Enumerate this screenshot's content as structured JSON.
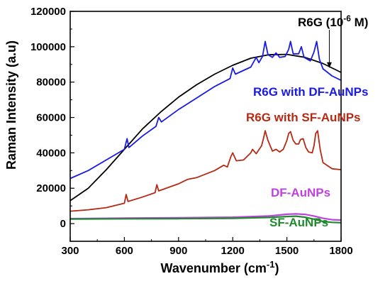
{
  "chart_data": {
    "type": "line",
    "xlabel": "Wavenumber (cm",
    "xlabel_superscript": "-1",
    "xlabel_suffix": ")",
    "ylabel": "Raman Intensity (a.u)",
    "xlim": [
      300,
      1800
    ],
    "ylim": [
      -10000,
      120000
    ],
    "x_ticks": [
      300,
      600,
      900,
      1200,
      1500,
      1800
    ],
    "y_ticks": [
      0,
      20000,
      40000,
      60000,
      80000,
      100000,
      120000
    ],
    "grid": false,
    "annotations": [
      {
        "text_main": "R6G (10",
        "text_sup": "-6",
        "text_end": " M)",
        "arrow_to": [
          1735,
          88000
        ]
      }
    ],
    "series": [
      {
        "name": "R6G (10-6 M)",
        "color": "#000000",
        "points": [
          [
            300,
            13000
          ],
          [
            400,
            20000
          ],
          [
            500,
            30500
          ],
          [
            600,
            42000
          ],
          [
            700,
            53500
          ],
          [
            800,
            63000
          ],
          [
            900,
            71500
          ],
          [
            1000,
            78500
          ],
          [
            1100,
            84500
          ],
          [
            1200,
            89500
          ],
          [
            1300,
            93500
          ],
          [
            1400,
            95500
          ],
          [
            1500,
            95700
          ],
          [
            1600,
            94000
          ],
          [
            1700,
            90500
          ],
          [
            1800,
            85500
          ]
        ]
      },
      {
        "name": "R6G with DF-AuNPs",
        "color": "#1a1ae6",
        "points": [
          [
            300,
            25500
          ],
          [
            400,
            30000
          ],
          [
            500,
            36000
          ],
          [
            600,
            42000
          ],
          [
            615,
            48000
          ],
          [
            625,
            43000
          ],
          [
            700,
            49500
          ],
          [
            775,
            55000
          ],
          [
            790,
            60000
          ],
          [
            805,
            57500
          ],
          [
            900,
            64500
          ],
          [
            1000,
            71000
          ],
          [
            1100,
            77500
          ],
          [
            1185,
            82000
          ],
          [
            1200,
            88000
          ],
          [
            1215,
            84500
          ],
          [
            1300,
            88500
          ],
          [
            1330,
            94000
          ],
          [
            1345,
            91000
          ],
          [
            1365,
            94500
          ],
          [
            1380,
            103000
          ],
          [
            1395,
            95500
          ],
          [
            1420,
            94000
          ],
          [
            1440,
            96500
          ],
          [
            1460,
            94000
          ],
          [
            1490,
            94500
          ],
          [
            1510,
            98500
          ],
          [
            1520,
            103000
          ],
          [
            1535,
            96000
          ],
          [
            1565,
            96000
          ],
          [
            1580,
            100000
          ],
          [
            1595,
            94000
          ],
          [
            1630,
            92000
          ],
          [
            1650,
            97000
          ],
          [
            1665,
            103000
          ],
          [
            1680,
            93000
          ],
          [
            1700,
            87500
          ],
          [
            1750,
            83500
          ],
          [
            1800,
            81000
          ]
        ]
      },
      {
        "name": "R6G with SF-AuNPs",
        "color": "#b52a14",
        "points": [
          [
            300,
            7000
          ],
          [
            400,
            7800
          ],
          [
            500,
            9000
          ],
          [
            600,
            11500
          ],
          [
            610,
            16500
          ],
          [
            620,
            12500
          ],
          [
            700,
            15000
          ],
          [
            770,
            17500
          ],
          [
            780,
            22000
          ],
          [
            790,
            18500
          ],
          [
            900,
            22500
          ],
          [
            950,
            25000
          ],
          [
            1000,
            26000
          ],
          [
            1100,
            30000
          ],
          [
            1150,
            33000
          ],
          [
            1170,
            32000
          ],
          [
            1190,
            38000
          ],
          [
            1200,
            40000
          ],
          [
            1220,
            35500
          ],
          [
            1260,
            36000
          ],
          [
            1300,
            40000
          ],
          [
            1310,
            42000
          ],
          [
            1330,
            39500
          ],
          [
            1360,
            44000
          ],
          [
            1370,
            48000
          ],
          [
            1380,
            52500
          ],
          [
            1395,
            47000
          ],
          [
            1420,
            41000
          ],
          [
            1440,
            42000
          ],
          [
            1460,
            40500
          ],
          [
            1480,
            42000
          ],
          [
            1500,
            47000
          ],
          [
            1510,
            51000
          ],
          [
            1520,
            52000
          ],
          [
            1535,
            47000
          ],
          [
            1550,
            45000
          ],
          [
            1565,
            45000
          ],
          [
            1575,
            47500
          ],
          [
            1590,
            48000
          ],
          [
            1605,
            43000
          ],
          [
            1620,
            40500
          ],
          [
            1640,
            40000
          ],
          [
            1650,
            44000
          ],
          [
            1660,
            51000
          ],
          [
            1670,
            52500
          ],
          [
            1685,
            41500
          ],
          [
            1700,
            34500
          ],
          [
            1750,
            31000
          ],
          [
            1800,
            30500
          ]
        ]
      },
      {
        "name": "DF-AuNPs",
        "color": "#c040e0",
        "points": [
          [
            300,
            2800
          ],
          [
            600,
            3100
          ],
          [
            900,
            3300
          ],
          [
            1200,
            3600
          ],
          [
            1400,
            4300
          ],
          [
            1500,
            5300
          ],
          [
            1550,
            5500
          ],
          [
            1600,
            5200
          ],
          [
            1650,
            4300
          ],
          [
            1700,
            3000
          ],
          [
            1750,
            2200
          ],
          [
            1800,
            2000
          ]
        ]
      },
      {
        "name": "SF-AuNPs",
        "color": "#1f8a2e",
        "points": [
          [
            300,
            2600
          ],
          [
            600,
            2700
          ],
          [
            900,
            2800
          ],
          [
            1200,
            3000
          ],
          [
            1400,
            3500
          ],
          [
            1500,
            4000
          ],
          [
            1550,
            4200
          ],
          [
            1600,
            3600
          ],
          [
            1650,
            2500
          ],
          [
            1700,
            1200
          ],
          [
            1750,
            700
          ],
          [
            1800,
            500
          ]
        ]
      }
    ],
    "series_labels": [
      {
        "text": "R6G with DF-AuNPs",
        "color": "#1a1ae6"
      },
      {
        "text": "R6G with SF-AuNPs",
        "color": "#b52a14"
      },
      {
        "text": "DF-AuNPs",
        "color": "#c040e0"
      },
      {
        "text": "SF-AuNPs",
        "color": "#1f8a2e"
      }
    ]
  }
}
